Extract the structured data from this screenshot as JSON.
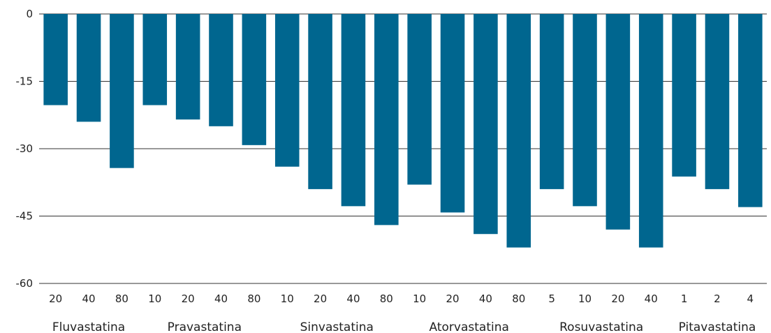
{
  "chart_data": {
    "type": "bar",
    "title": "",
    "xlabel": "",
    "ylabel": "",
    "ylim": [
      -60,
      0
    ],
    "yticks": [
      0,
      -15,
      -30,
      -45,
      -60
    ],
    "grid": true,
    "bar_color": "#00668f",
    "categories": [
      "20",
      "40",
      "80",
      "10",
      "20",
      "40",
      "80",
      "10",
      "20",
      "40",
      "80",
      "10",
      "20",
      "40",
      "80",
      "5",
      "10",
      "20",
      "40",
      "1",
      "2",
      "4"
    ],
    "values": [
      -20.3,
      -24,
      -34.3,
      -20.3,
      -23.5,
      -25,
      -29.2,
      -34,
      -39,
      -42.8,
      -47,
      -38,
      -44.2,
      -49,
      -52,
      -39,
      -42.8,
      -48,
      -52,
      -36.2,
      -39,
      -43
    ],
    "groups": [
      {
        "name": "Fluvastatina",
        "count": 3
      },
      {
        "name": "Pravastatina",
        "count": 4
      },
      {
        "name": "Sinvastatina",
        "count": 4
      },
      {
        "name": "Atorvastatina",
        "count": 4
      },
      {
        "name": "Rosuvastatina",
        "count": 4
      },
      {
        "name": "Pitavastatina",
        "count": 3
      }
    ]
  }
}
